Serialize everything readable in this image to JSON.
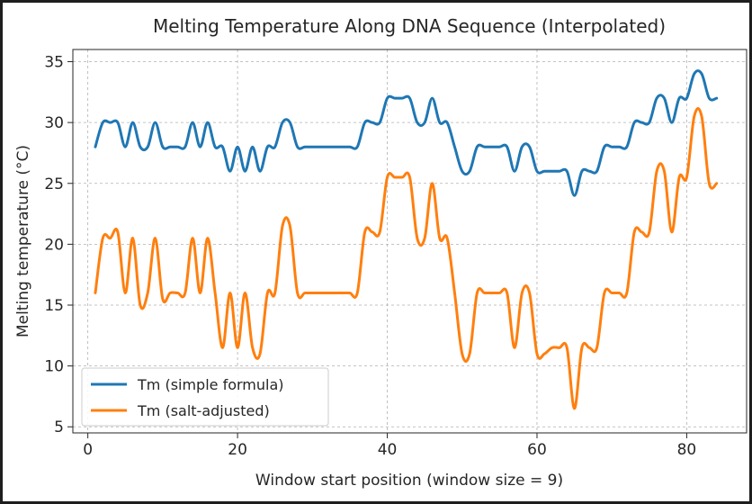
{
  "chart_data": {
    "type": "line",
    "title": "Melting Temperature Along DNA Sequence (Interpolated)",
    "xlabel": "Window start position (window size = 9)",
    "ylabel": "Melting temperature (°C)",
    "xlim": [
      -2,
      88
    ],
    "ylim": [
      4.5,
      36
    ],
    "xticks": [
      0,
      20,
      40,
      60,
      80
    ],
    "yticks": [
      5,
      10,
      15,
      20,
      25,
      30,
      35
    ],
    "grid": true,
    "legend_position": "lower-left",
    "colors": {
      "series_1": "#1f77b4",
      "series_2": "#ff7f0e"
    },
    "x": [
      1,
      2,
      3,
      4,
      5,
      6,
      7,
      8,
      9,
      10,
      11,
      12,
      13,
      14,
      15,
      16,
      17,
      18,
      19,
      20,
      21,
      22,
      23,
      24,
      25,
      26,
      27,
      28,
      29,
      30,
      31,
      32,
      33,
      34,
      35,
      36,
      37,
      38,
      39,
      40,
      41,
      42,
      43,
      44,
      45,
      46,
      47,
      48,
      49,
      50,
      51,
      52,
      53,
      54,
      55,
      56,
      57,
      58,
      59,
      60,
      61,
      62,
      63,
      64,
      65,
      66,
      67,
      68,
      69,
      70,
      71,
      72,
      73,
      74,
      75,
      76,
      77,
      78,
      79,
      80,
      81,
      82,
      83,
      84
    ],
    "series": [
      {
        "name": "Tm (simple formula)",
        "values": [
          28,
          30,
          30,
          30,
          28,
          30,
          28,
          28,
          30,
          28,
          28,
          28,
          28,
          30,
          28,
          30,
          28,
          28,
          26,
          28,
          26,
          28,
          26,
          28,
          28,
          30,
          30,
          28,
          28,
          28,
          28,
          28,
          28,
          28,
          28,
          28,
          30,
          30,
          30,
          32,
          32,
          32,
          32,
          30,
          30,
          32,
          30,
          30,
          28,
          26,
          26,
          28,
          28,
          28,
          28,
          28,
          26,
          28,
          28,
          26,
          26,
          26,
          26,
          26,
          24,
          26,
          26,
          26,
          28,
          28,
          28,
          28,
          30,
          30,
          30,
          32,
          32,
          30,
          32,
          32,
          34,
          34,
          32,
          32
        ]
      },
      {
        "name": "Tm (salt-adjusted)",
        "values": [
          16,
          20.5,
          20.5,
          21,
          16,
          20.5,
          15,
          16,
          20.5,
          15.5,
          16,
          16,
          16,
          20.5,
          16,
          20.5,
          16,
          11.5,
          16,
          11.5,
          16,
          11.5,
          11,
          16,
          16,
          21.5,
          21.5,
          16,
          16,
          16,
          16,
          16,
          16,
          16,
          16,
          16,
          21,
          21,
          21,
          25.5,
          25.5,
          25.5,
          25.5,
          20.5,
          20.5,
          25,
          20.5,
          20.5,
          16,
          11,
          11,
          16,
          16,
          16,
          16,
          16,
          11.5,
          16,
          16,
          11,
          11,
          11.5,
          11.5,
          11.5,
          6.5,
          11.5,
          11.5,
          11.5,
          16,
          16,
          16,
          16,
          21,
          21,
          21,
          26,
          26,
          21,
          25.5,
          25.5,
          30.5,
          30.5,
          25,
          25
        ]
      }
    ]
  }
}
